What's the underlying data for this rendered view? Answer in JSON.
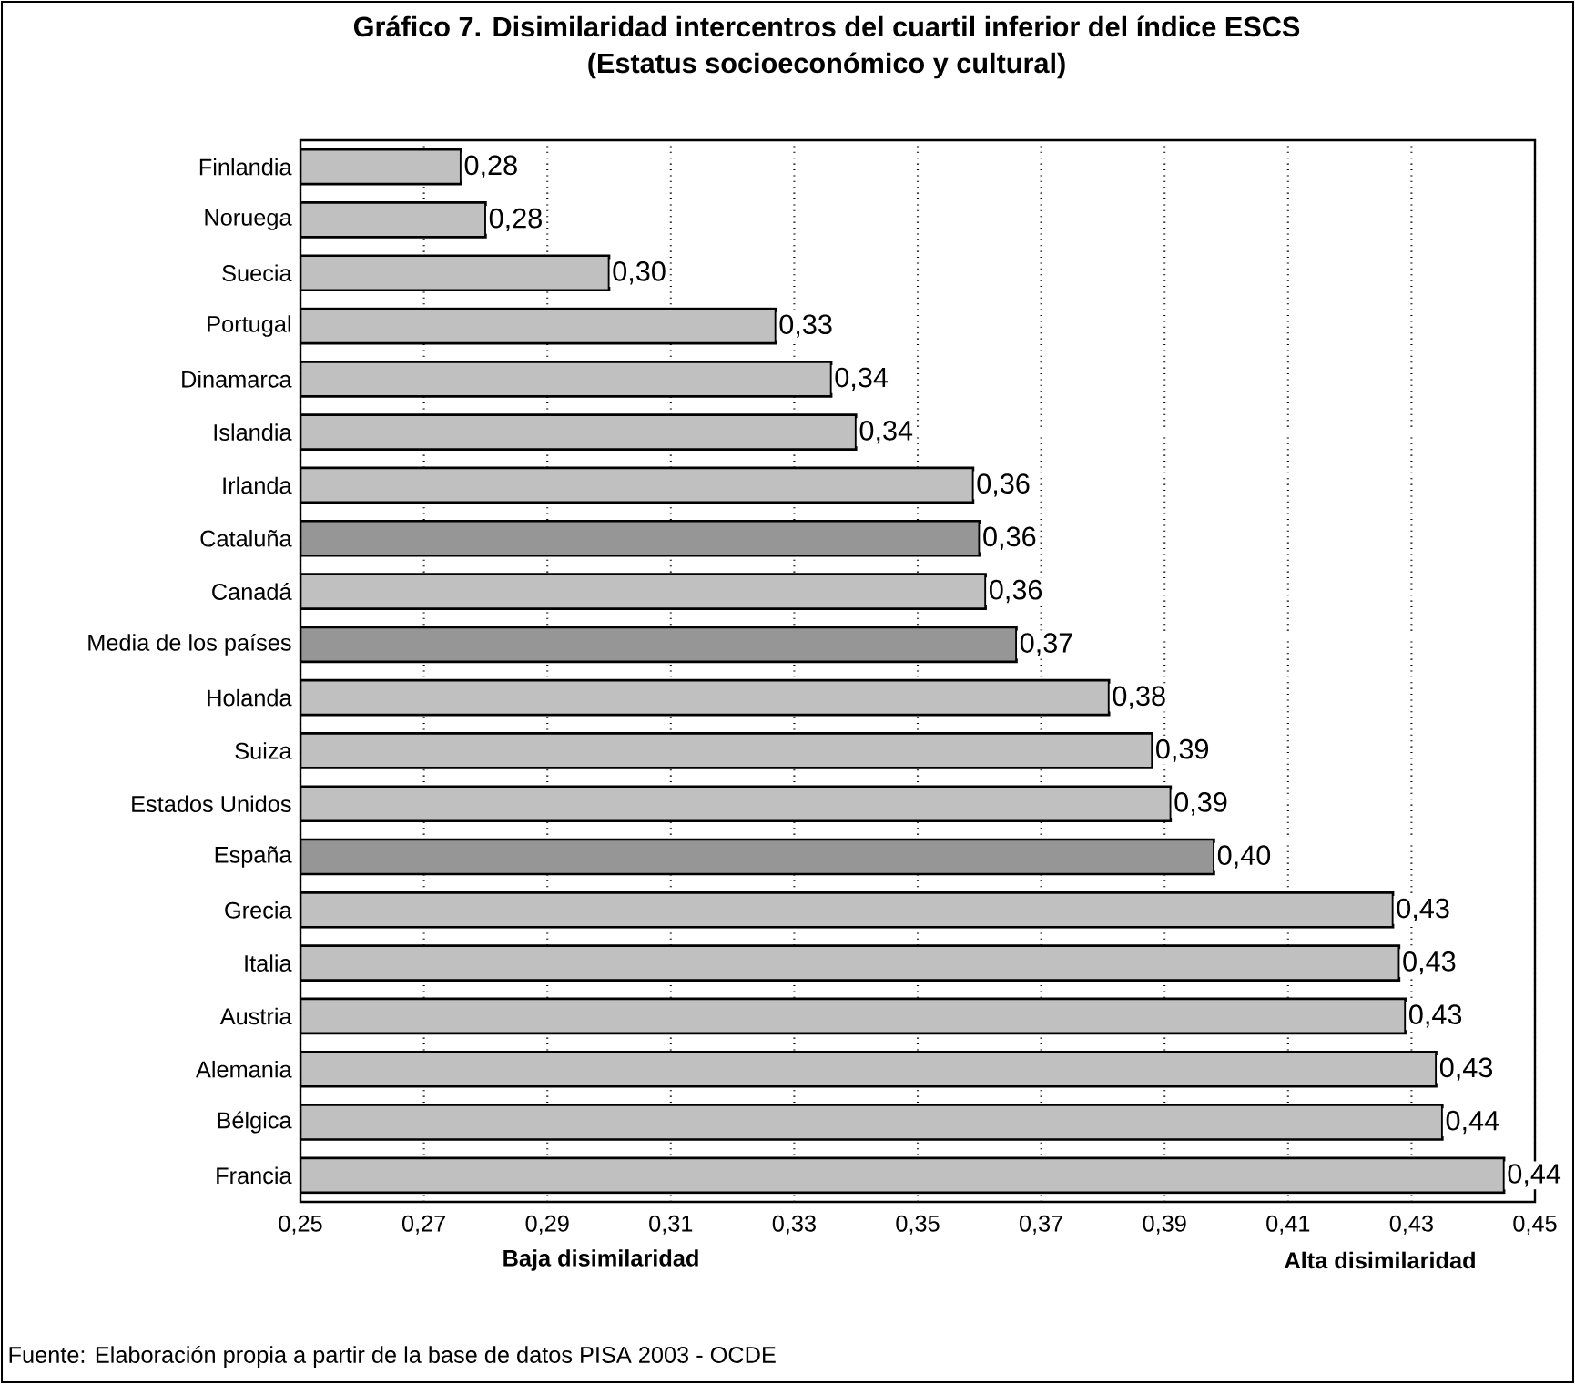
{
  "chart_data": {
    "type": "bar",
    "orientation": "horizontal",
    "title": "Gráfico 7. Disimilaridad intercentros del cuartil inferior del índice ESCS",
    "subtitle": "(Estatus socioeconómico y cultural)",
    "categories": [
      "Finlandia",
      "Noruega",
      "Suecia",
      "Portugal",
      "Dinamarca",
      "Islandia",
      "Irlanda",
      "Cataluña",
      "Canadá",
      "Media de los países",
      "Holanda",
      "Suiza",
      "Estados Unidos",
      "España",
      "Grecia",
      "Italia",
      "Austria",
      "Alemania",
      "Bélgica",
      "Francia"
    ],
    "values": [
      0.276,
      0.28,
      0.3,
      0.327,
      0.336,
      0.34,
      0.359,
      0.36,
      0.361,
      0.366,
      0.381,
      0.388,
      0.391,
      0.398,
      0.427,
      0.428,
      0.429,
      0.434,
      0.435,
      0.445
    ],
    "value_labels": [
      "0,28",
      "0,28",
      "0,30",
      "0,33",
      "0,34",
      "0,34",
      "0,36",
      "0,36",
      "0,36",
      "0,37",
      "0,38",
      "0,39",
      "0,39",
      "0,40",
      "0,43",
      "0,43",
      "0,43",
      "0,43",
      "0,44",
      "0,44"
    ],
    "colors": [
      "#c0c0c0",
      "#c0c0c0",
      "#c0c0c0",
      "#c0c0c0",
      "#c0c0c0",
      "#c0c0c0",
      "#c0c0c0",
      "#969696",
      "#c0c0c0",
      "#969696",
      "#c0c0c0",
      "#c0c0c0",
      "#c0c0c0",
      "#969696",
      "#c0c0c0",
      "#c0c0c0",
      "#c0c0c0",
      "#c0c0c0",
      "#c0c0c0",
      "#c0c0c0"
    ],
    "xlim": [
      0.25,
      0.45
    ],
    "xticks": [
      {
        "value": 0.25,
        "label": "0,25"
      },
      {
        "value": 0.27,
        "label": "0,27"
      },
      {
        "value": 0.29,
        "label": "0,29"
      },
      {
        "value": 0.31,
        "label": "0,31"
      },
      {
        "value": 0.33,
        "label": "0,33"
      },
      {
        "value": 0.35,
        "label": "0,35"
      },
      {
        "value": 0.37,
        "label": "0,37"
      },
      {
        "value": 0.39,
        "label": "0,39"
      },
      {
        "value": 0.41,
        "label": "0,41"
      },
      {
        "value": 0.43,
        "label": "0,43"
      },
      {
        "value": 0.45,
        "label": "0,45"
      }
    ],
    "grid": "x",
    "annotations": [
      "Baja disimilaridad",
      "Alta disimilaridad",
      "Fuente: Elaboración propia a partir de la base de datos PISA 2003 - OCDE"
    ]
  }
}
